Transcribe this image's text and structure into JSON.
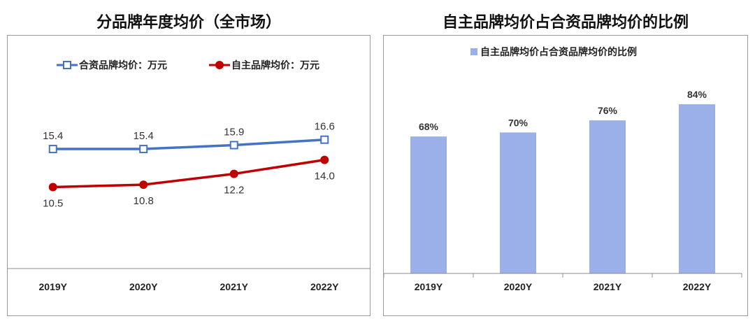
{
  "titles": {
    "left": "分品牌年度均价（全市场）",
    "right": "自主品牌均价占合资品牌均价的比例"
  },
  "chart_data": [
    {
      "type": "line",
      "title": "分品牌年度均价（全市场）",
      "categories": [
        "2019Y",
        "2020Y",
        "2021Y",
        "2022Y"
      ],
      "series": [
        {
          "name": "合资品牌均价：万元",
          "values": [
            15.4,
            15.4,
            15.9,
            16.6
          ],
          "color": "#4472C4",
          "marker": "square-open"
        },
        {
          "name": "自主品牌均价：万元",
          "values": [
            10.5,
            10.8,
            12.2,
            14.0
          ],
          "color": "#C00000",
          "marker": "circle-filled"
        }
      ],
      "value_labels": {
        "合资品牌均价：万元": [
          "15.4",
          "15.4",
          "15.9",
          "16.6"
        ],
        "自主品牌均价：万元": [
          "10.5",
          "10.8",
          "12.2",
          "14.0"
        ]
      },
      "ylim": [
        0,
        30
      ],
      "grid": false,
      "legend": "top"
    },
    {
      "type": "bar",
      "title": "自主品牌均价占合资品牌均价的比例",
      "categories": [
        "2019Y",
        "2020Y",
        "2021Y",
        "2022Y"
      ],
      "series": [
        {
          "name": "自主品牌均价占合资品牌均价的比例",
          "values": [
            68,
            70,
            76,
            84
          ],
          "color": "#9BB0E8"
        }
      ],
      "value_labels": [
        "68%",
        "70%",
        "76%",
        "84%"
      ],
      "ylim": [
        0,
        100
      ],
      "grid": false,
      "legend": "top"
    }
  ]
}
